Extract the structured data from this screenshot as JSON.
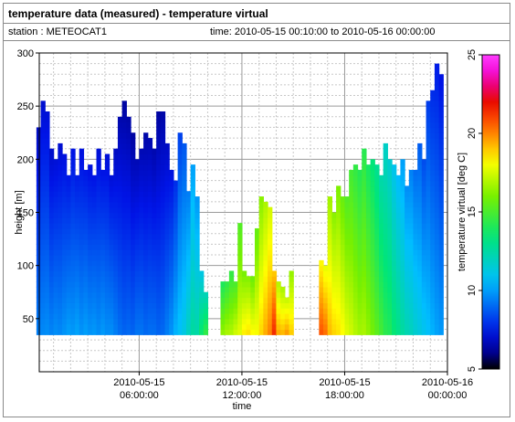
{
  "header": {
    "title": "temperature data (measured) - temperature virtual",
    "station": "station : METEOCAT1",
    "timerange": "time: 2010-05-15 00:10:00 to 2010-05-16 00:00:00"
  },
  "chart_data": {
    "type": "heatmap",
    "xlabel": "time",
    "ylabel": "height [m]",
    "colorbar_label": "temperature virtual [deg C]",
    "xlim": [
      "2010-05-15 00:10:00",
      "2010-05-16 00:00:00"
    ],
    "x_ticks": [
      {
        "line1": "2010-05-15",
        "line2": "06:00:00",
        "hour": 6
      },
      {
        "line1": "2010-05-15",
        "line2": "12:00:00",
        "hour": 12
      },
      {
        "line1": "2010-05-15",
        "line2": "18:00:00",
        "hour": 18
      },
      {
        "line1": "2010-05-16",
        "line2": "00:00:00",
        "hour": 24
      }
    ],
    "ylim": [
      0,
      300
    ],
    "y_ticks": [
      "50",
      "100",
      "150",
      "200",
      "250",
      "300"
    ],
    "colorbar_range": [
      5,
      25
    ],
    "colorbar_ticks": [
      "5",
      "10",
      "15",
      "20",
      "25"
    ],
    "grid": true,
    "height_bin_bottom_m": 35,
    "columns": [
      {
        "hour": 0.25,
        "top": 230,
        "temp": 8.0
      },
      {
        "hour": 0.5,
        "top": 255,
        "temp": 8.2
      },
      {
        "hour": 0.75,
        "top": 245,
        "temp": 8.3
      },
      {
        "hour": 1.0,
        "top": 210,
        "temp": 8.1
      },
      {
        "hour": 1.25,
        "top": 200,
        "temp": 8.3
      },
      {
        "hour": 1.5,
        "top": 215,
        "temp": 8.2
      },
      {
        "hour": 1.75,
        "top": 205,
        "temp": 8.4
      },
      {
        "hour": 2.0,
        "top": 185,
        "temp": 8.6
      },
      {
        "hour": 2.25,
        "top": 210,
        "temp": 8.5
      },
      {
        "hour": 2.5,
        "top": 185,
        "temp": 8.7
      },
      {
        "hour": 2.75,
        "top": 210,
        "temp": 8.4
      },
      {
        "hour": 3.0,
        "top": 190,
        "temp": 8.6
      },
      {
        "hour": 3.25,
        "top": 195,
        "temp": 8.4
      },
      {
        "hour": 3.5,
        "top": 185,
        "temp": 8.5
      },
      {
        "hour": 3.75,
        "top": 210,
        "temp": 8.3
      },
      {
        "hour": 4.0,
        "top": 190,
        "temp": 8.5
      },
      {
        "hour": 4.25,
        "top": 205,
        "temp": 8.3
      },
      {
        "hour": 4.5,
        "top": 185,
        "temp": 8.3
      },
      {
        "hour": 4.75,
        "top": 210,
        "temp": 8.0
      },
      {
        "hour": 5.0,
        "top": 240,
        "temp": 7.7
      },
      {
        "hour": 5.25,
        "top": 255,
        "temp": 7.5
      },
      {
        "hour": 5.5,
        "top": 240,
        "temp": 7.6
      },
      {
        "hour": 5.75,
        "top": 225,
        "temp": 7.5
      },
      {
        "hour": 6.0,
        "top": 200,
        "temp": 7.8
      },
      {
        "hour": 6.25,
        "top": 210,
        "temp": 7.8
      },
      {
        "hour": 6.5,
        "top": 225,
        "temp": 7.6
      },
      {
        "hour": 6.75,
        "top": 220,
        "temp": 7.7
      },
      {
        "hour": 7.0,
        "top": 210,
        "temp": 7.7
      },
      {
        "hour": 7.25,
        "top": 245,
        "temp": 7.5
      },
      {
        "hour": 7.5,
        "top": 245,
        "temp": 7.6
      },
      {
        "hour": 7.75,
        "top": 215,
        "temp": 8.0
      },
      {
        "hour": 8.0,
        "top": 190,
        "temp": 8.4
      },
      {
        "hour": 8.25,
        "top": 180,
        "temp": 9.0
      },
      {
        "hour": 8.5,
        "top": 225,
        "temp": 9.4
      },
      {
        "hour": 8.75,
        "top": 215,
        "temp": 9.8
      },
      {
        "hour": 9.0,
        "top": 170,
        "temp": 10.5
      },
      {
        "hour": 9.25,
        "top": 195,
        "temp": 11.2
      },
      {
        "hour": 9.5,
        "top": 165,
        "temp": 11.0
      },
      {
        "hour": 9.75,
        "top": 95,
        "temp": 12.2
      },
      {
        "hour": 10.0,
        "top": 75,
        "temp": 13.0
      },
      {
        "hour": 11.0,
        "top": 85,
        "temp": 15.0
      },
      {
        "hour": 11.25,
        "top": 85,
        "temp": 15.4
      },
      {
        "hour": 11.5,
        "top": 95,
        "temp": 15.5
      },
      {
        "hour": 11.75,
        "top": 85,
        "temp": 16.0
      },
      {
        "hour": 12.0,
        "top": 140,
        "temp": 16.3
      },
      {
        "hour": 12.25,
        "top": 95,
        "temp": 17.0
      },
      {
        "hour": 12.5,
        "top": 90,
        "temp": 17.2
      },
      {
        "hour": 12.75,
        "top": 90,
        "temp": 16.8
      },
      {
        "hour": 13.0,
        "top": 135,
        "temp": 16.7
      },
      {
        "hour": 13.25,
        "top": 165,
        "temp": 17.4
      },
      {
        "hour": 13.5,
        "top": 160,
        "temp": 18.0
      },
      {
        "hour": 13.75,
        "top": 155,
        "temp": 18.6
      },
      {
        "hour": 14.0,
        "top": 95,
        "temp": 20.0
      },
      {
        "hour": 14.25,
        "top": 85,
        "temp": 18.0
      },
      {
        "hour": 14.5,
        "top": 80,
        "temp": 17.8
      },
      {
        "hour": 14.75,
        "top": 70,
        "temp": 18.2
      },
      {
        "hour": 15.0,
        "top": 95,
        "temp": 17.5
      },
      {
        "hour": 16.75,
        "top": 105,
        "temp": 19.3
      },
      {
        "hour": 17.0,
        "top": 100,
        "temp": 18.9
      },
      {
        "hour": 17.25,
        "top": 165,
        "temp": 17.8
      },
      {
        "hour": 17.5,
        "top": 150,
        "temp": 17.4
      },
      {
        "hour": 17.75,
        "top": 175,
        "temp": 17.2
      },
      {
        "hour": 18.0,
        "top": 165,
        "temp": 16.8
      },
      {
        "hour": 18.25,
        "top": 165,
        "temp": 16.3
      },
      {
        "hour": 18.5,
        "top": 190,
        "temp": 16.0
      },
      {
        "hour": 18.75,
        "top": 195,
        "temp": 15.6
      },
      {
        "hour": 19.0,
        "top": 190,
        "temp": 15.3
      },
      {
        "hour": 19.25,
        "top": 210,
        "temp": 15.4
      },
      {
        "hour": 19.5,
        "top": 195,
        "temp": 15.0
      },
      {
        "hour": 19.75,
        "top": 200,
        "temp": 14.5
      },
      {
        "hour": 20.0,
        "top": 195,
        "temp": 14.0
      },
      {
        "hour": 20.25,
        "top": 185,
        "temp": 13.5
      },
      {
        "hour": 20.5,
        "top": 215,
        "temp": 12.9
      },
      {
        "hour": 20.75,
        "top": 200,
        "temp": 12.7
      },
      {
        "hour": 21.0,
        "top": 195,
        "temp": 12.1
      },
      {
        "hour": 21.25,
        "top": 185,
        "temp": 11.7
      },
      {
        "hour": 21.5,
        "top": 200,
        "temp": 11.2
      },
      {
        "hour": 21.75,
        "top": 175,
        "temp": 10.8
      },
      {
        "hour": 22.0,
        "top": 190,
        "temp": 10.6
      },
      {
        "hour": 22.25,
        "top": 190,
        "temp": 10.2
      },
      {
        "hour": 22.5,
        "top": 215,
        "temp": 9.9
      },
      {
        "hour": 22.75,
        "top": 200,
        "temp": 9.6
      },
      {
        "hour": 23.0,
        "top": 255,
        "temp": 9.3
      },
      {
        "hour": 23.25,
        "top": 265,
        "temp": 9.0
      },
      {
        "hour": 23.5,
        "top": 290,
        "temp": 8.7
      },
      {
        "hour": 23.75,
        "top": 280,
        "temp": 8.5
      }
    ]
  }
}
